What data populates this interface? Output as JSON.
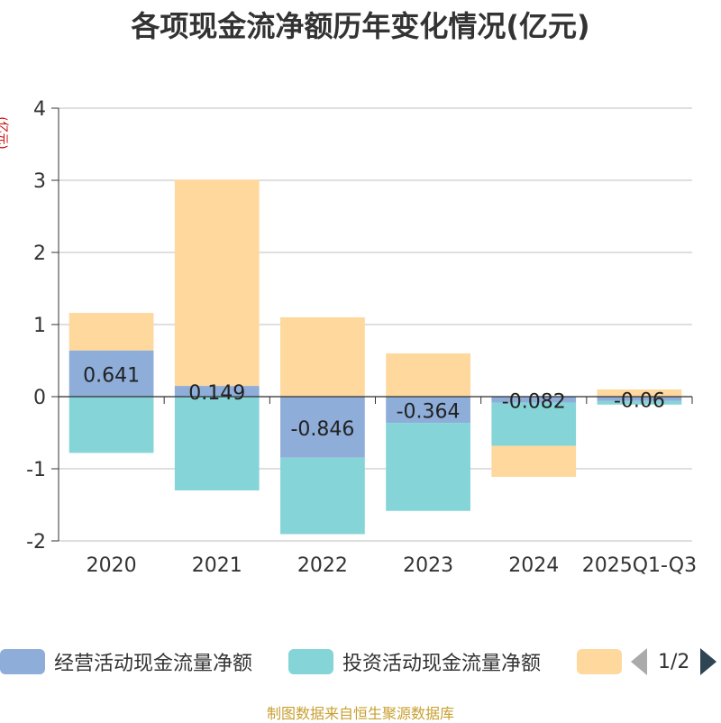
{
  "title": "各项现金流净额历年变化情况(亿元)",
  "source": "制图数据来自恒生聚源数据库",
  "pager": "1/2",
  "chart_data": {
    "type": "bar",
    "stacked": true,
    "title": "各项现金流净额历年变化情况(亿元)",
    "ylabel": "(亿元)",
    "ylim": [
      -2,
      4
    ],
    "yticks": [
      -2,
      -1,
      0,
      1,
      2,
      3,
      4
    ],
    "grid": true,
    "legend_position": "bottom",
    "categories": [
      "2020",
      "2021",
      "2022",
      "2023",
      "2024",
      "2025Q1-Q3"
    ],
    "series": [
      {
        "name": "经营活动现金流量净额",
        "color": "#8eadd9",
        "values": [
          0.641,
          0.149,
          -0.846,
          -0.364,
          -0.082,
          -0.06
        ],
        "labels": [
          "0.641",
          "0.149",
          "-0.846",
          "-0.364",
          "-0.082",
          "-0.06"
        ]
      },
      {
        "name": "投资活动现金流量净额",
        "color": "#85d4d8",
        "values": [
          -0.78,
          -1.3,
          -1.06,
          -1.22,
          -0.6,
          -0.05
        ]
      },
      {
        "name": "",
        "color": "#fed89c",
        "values": [
          0.52,
          2.86,
          1.1,
          0.6,
          -0.43,
          0.1
        ]
      }
    ]
  }
}
